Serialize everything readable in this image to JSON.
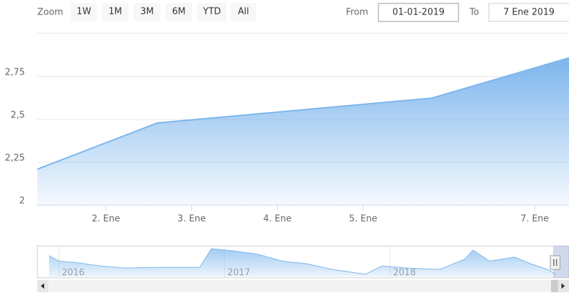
{
  "toolbar": {
    "zoom_label": "Zoom",
    "buttons": [
      "1W",
      "1M",
      "3M",
      "6M",
      "YTD",
      "All"
    ],
    "from_label": "From",
    "from_value": "01-01-2019",
    "to_label": "To",
    "to_value": "7 Ene 2019"
  },
  "chart_data": [
    {
      "type": "area",
      "x": [
        1.2,
        2.6,
        5.8,
        7.4
      ],
      "values": [
        2.21,
        2.48,
        2.625,
        2.86
      ],
      "color": "#7cb5ec",
      "xlim": [
        1.2,
        7.4
      ],
      "xticks": [
        {
          "value": 2,
          "label": "2. Ene"
        },
        {
          "value": 3,
          "label": "3. Ene"
        },
        {
          "value": 4,
          "label": "4. Ene"
        },
        {
          "value": 5,
          "label": "5. Ene"
        },
        {
          "value": 7,
          "label": "7. Ene"
        }
      ],
      "ylim": [
        2,
        3
      ],
      "yticks": [
        {
          "value": 2,
          "label": "2"
        },
        {
          "value": 2.25,
          "label": "2,25"
        },
        {
          "value": 2.5,
          "label": "2,5"
        },
        {
          "value": 2.75,
          "label": "2,75"
        }
      ],
      "grid": true
    },
    {
      "type": "area",
      "x": [
        2015.94,
        2016.0,
        2016.1,
        2016.25,
        2016.4,
        2016.6,
        2016.85,
        2016.92,
        2017.05,
        2017.2,
        2017.35,
        2017.5,
        2017.65,
        2017.85,
        2017.95,
        2018.1,
        2018.3,
        2018.45,
        2018.5,
        2018.6,
        2018.75,
        2018.85,
        2018.95,
        2019.0
      ],
      "values": [
        30,
        22,
        20,
        15,
        12,
        13,
        13,
        40,
        37,
        32,
        22,
        18,
        10,
        3,
        15,
        12,
        10,
        25,
        38,
        22,
        28,
        18,
        10,
        3
      ],
      "color": "#7cb5ec",
      "xlim": [
        2015.94,
        2019.0
      ],
      "xticks": [
        2016,
        2017,
        2018
      ],
      "ylim": [
        0,
        43
      ],
      "grid": true
    }
  ]
}
